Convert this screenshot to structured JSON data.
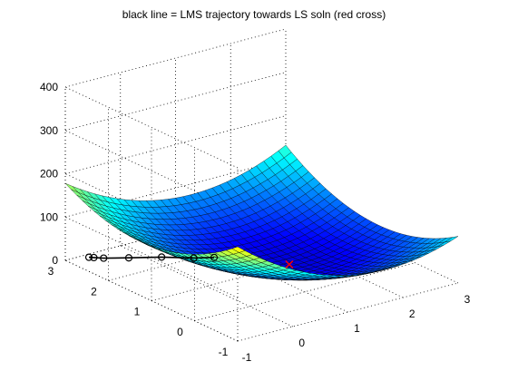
{
  "figure": {
    "title": "black line = LMS trajectory towards LS soln (red cross)"
  },
  "chart_data": {
    "type": "surface",
    "title": "black line = LMS trajectory towards LS soln (red cross)",
    "xlabel": "",
    "ylabel": "",
    "zlabel": "",
    "xlim": [
      -1,
      3
    ],
    "ylim": [
      -1,
      3
    ],
    "zlim": [
      0,
      400
    ],
    "x_ticks": [
      "-1",
      "0",
      "1",
      "2",
      "3"
    ],
    "y_ticks": [
      "-1",
      "0",
      "1",
      "2",
      "3"
    ],
    "z_ticks": [
      "0",
      "100",
      "200",
      "300",
      "400"
    ],
    "grid": true,
    "colormap": "jet",
    "surface": {
      "function": "quadratic bowl",
      "corner_values": {
        "x=-1,y=3": 200,
        "x=3,y=-1": 375,
        "x=3,y=3": 110,
        "x=-1,y=-1": 330
      },
      "minimum_near": [
        1.5,
        1.0
      ],
      "grid_resolution": 30
    },
    "series": [
      {
        "type": "line",
        "marker": "circle",
        "color": "#000000",
        "x": [
          -0.65,
          -0.6,
          -0.5,
          -0.2,
          0.2,
          0.55,
          0.8
        ],
        "y": [
          2.9,
          2.85,
          2.75,
          2.55,
          2.3,
          2.0,
          1.85
        ],
        "z": [
          0,
          0,
          0,
          0,
          0,
          0,
          0
        ]
      },
      {
        "type": "marker",
        "marker": "cross",
        "color": "#ff0000",
        "x": [
          1.5
        ],
        "y": [
          1.0
        ],
        "z": [
          0
        ]
      }
    ]
  }
}
